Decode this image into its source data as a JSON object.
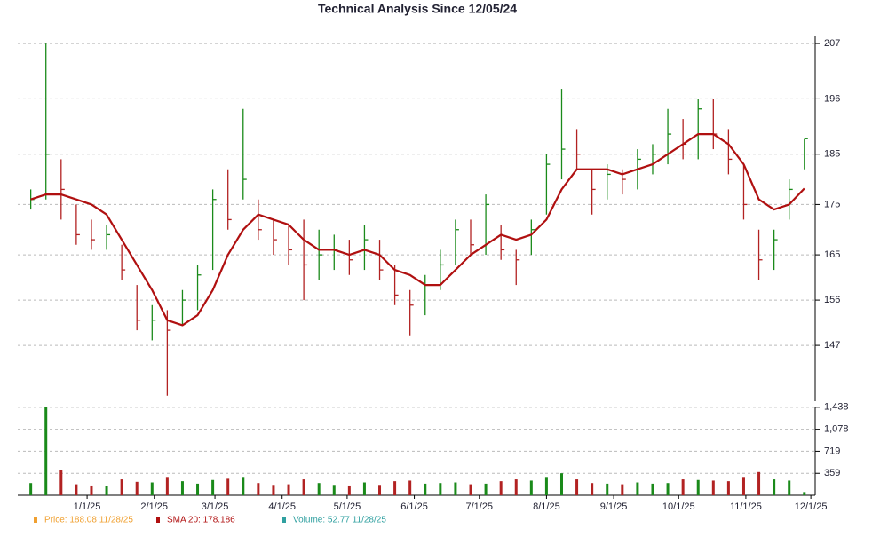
{
  "chart_data": {
    "type": "stock",
    "title": "Technical Analysis Since 12/05/24",
    "x": [
      "2024-12-06",
      "2024-12-13",
      "2024-12-20",
      "2024-12-27",
      "2025-01-03",
      "2025-01-10",
      "2025-01-17",
      "2025-01-24",
      "2025-01-31",
      "2025-02-07",
      "2025-02-14",
      "2025-02-21",
      "2025-02-28",
      "2025-03-07",
      "2025-03-14",
      "2025-03-21",
      "2025-03-28",
      "2025-04-04",
      "2025-04-11",
      "2025-04-18",
      "2025-04-25",
      "2025-05-02",
      "2025-05-09",
      "2025-05-16",
      "2025-05-23",
      "2025-05-30",
      "2025-06-06",
      "2025-06-13",
      "2025-06-20",
      "2025-06-27",
      "2025-07-04",
      "2025-07-11",
      "2025-07-18",
      "2025-07-25",
      "2025-08-01",
      "2025-08-08",
      "2025-08-15",
      "2025-08-22",
      "2025-08-29",
      "2025-09-05",
      "2025-09-12",
      "2025-09-19",
      "2025-09-26",
      "2025-10-03",
      "2025-10-10",
      "2025-10-17",
      "2025-10-24",
      "2025-10-31",
      "2025-11-07",
      "2025-11-14",
      "2025-11-21",
      "2025-11-28"
    ],
    "xlim": [
      "2024-11-30",
      "2025-12-03"
    ],
    "xticks": [
      {
        "value": "2025-01-01",
        "label": "1/1/25"
      },
      {
        "value": "2025-02-01",
        "label": "2/1/25"
      },
      {
        "value": "2025-03-01",
        "label": "3/1/25"
      },
      {
        "value": "2025-04-01",
        "label": "4/1/25"
      },
      {
        "value": "2025-05-01",
        "label": "5/1/25"
      },
      {
        "value": "2025-06-01",
        "label": "6/1/25"
      },
      {
        "value": "2025-07-01",
        "label": "7/1/25"
      },
      {
        "value": "2025-08-01",
        "label": "8/1/25"
      },
      {
        "value": "2025-09-01",
        "label": "9/1/25"
      },
      {
        "value": "2025-10-01",
        "label": "10/1/25"
      },
      {
        "value": "2025-11-01",
        "label": "11/1/25"
      },
      {
        "value": "2025-12-01",
        "label": "12/1/25"
      }
    ],
    "ylim": [
      135.9,
      208.6
    ],
    "yticks": [
      147,
      156,
      165,
      175,
      185,
      196,
      207
    ],
    "grid": true,
    "price": {
      "up_color": "#1a8a1a",
      "down_color": "#b22222",
      "high": [
        178,
        207,
        184,
        175,
        172,
        171,
        167,
        159,
        155,
        154,
        158,
        163,
        178,
        182,
        194,
        176,
        172,
        171,
        172,
        170,
        169,
        168,
        171,
        168,
        163,
        158,
        161,
        166,
        172,
        172,
        177,
        171,
        166,
        172,
        185,
        198,
        190,
        182,
        183,
        182,
        186,
        187,
        194,
        192,
        196,
        196,
        190,
        183,
        170,
        170,
        180,
        188
      ],
      "low": [
        174,
        176,
        172,
        167,
        166,
        166,
        160,
        150,
        148,
        137,
        151,
        154,
        162,
        170,
        176,
        168,
        165,
        163,
        156,
        160,
        162,
        161,
        162,
        160,
        155,
        149,
        153,
        158,
        163,
        165,
        165,
        164,
        159,
        165,
        173,
        180,
        182,
        173,
        176,
        177,
        178,
        181,
        183,
        184,
        184,
        186,
        181,
        172,
        160,
        162,
        172,
        182
      ],
      "close": [
        176,
        185,
        178,
        169,
        168,
        169,
        162,
        152,
        152,
        150,
        156,
        161,
        176,
        172,
        180,
        170,
        168,
        166,
        163,
        165,
        166,
        164,
        168,
        162,
        157,
        155,
        159,
        163,
        170,
        167,
        175,
        166,
        164,
        170,
        183,
        186,
        185,
        178,
        181,
        180,
        184,
        185,
        189,
        187,
        194,
        189,
        184,
        175,
        164,
        168,
        178,
        188.08
      ]
    },
    "sma": {
      "color": "#b01010",
      "values": [
        176,
        177,
        177,
        176,
        175,
        173,
        168,
        163,
        158,
        152,
        151,
        153,
        158,
        165,
        170,
        173,
        172,
        171,
        168,
        166,
        166,
        165,
        166,
        165,
        162,
        161,
        159,
        159,
        162,
        165,
        167,
        169,
        168,
        169,
        172,
        178,
        182,
        182,
        182,
        181,
        182,
        183,
        185,
        187,
        189,
        189,
        187,
        183,
        176,
        174,
        175,
        178.186
      ]
    },
    "volume": {
      "values": [
        200,
        1438,
        420,
        180,
        160,
        150,
        260,
        220,
        210,
        300,
        230,
        190,
        250,
        270,
        300,
        200,
        170,
        180,
        260,
        200,
        170,
        160,
        210,
        170,
        230,
        240,
        190,
        200,
        210,
        180,
        190,
        230,
        260,
        240,
        300,
        360,
        260,
        200,
        190,
        180,
        210,
        190,
        200,
        260,
        250,
        240,
        230,
        300,
        380,
        260,
        240,
        52.77
      ],
      "ylim": [
        0,
        1450
      ],
      "yticks": [
        {
          "value": 1438,
          "label": "1,438"
        },
        {
          "value": 1078,
          "label": "1,078"
        },
        719,
        359
      ]
    },
    "legend": [
      {
        "label": "Price: 188.08  11/28/25",
        "color": "#f0a030"
      },
      {
        "label": "SMA 20: 178.186",
        "color": "#b01010"
      },
      {
        "label": "Volume: 52.77  11/28/25",
        "color": "#30a0a0"
      }
    ]
  }
}
